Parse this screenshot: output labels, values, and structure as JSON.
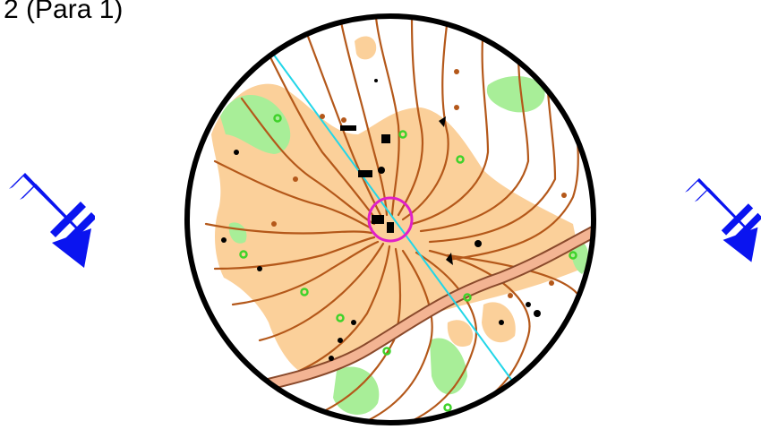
{
  "title": "2 (Para 1)",
  "icons": {
    "north_left": "north-arrow-icon",
    "north_right": "north-arrow-icon"
  },
  "colors": {
    "north_arrow": "#0a14f0",
    "open_land": "#fbd09a",
    "vegetation_green": "#a8ee98",
    "contour": "#b4581a",
    "road_fill": "#f3b493",
    "road_edge": "#8a4a2c",
    "magnetic_line": "#22d6e8",
    "control_circle": "#e020c8",
    "map_frame": "#000000",
    "green_marker": "#3fd22a"
  }
}
